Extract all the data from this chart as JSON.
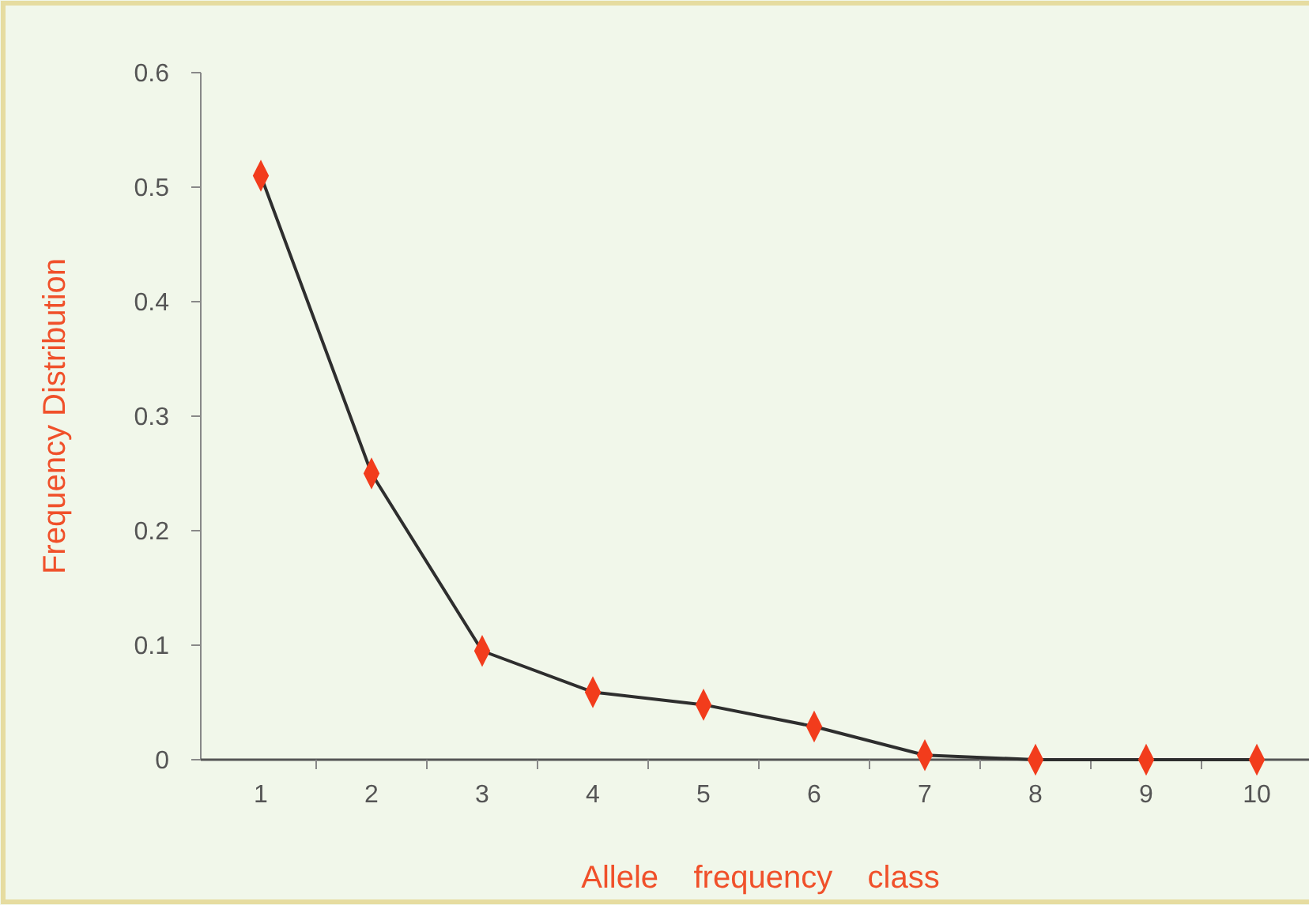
{
  "chart_data": {
    "type": "line",
    "xlabel": "Allele    frequency    class",
    "ylabel": "Frequency Distribution",
    "categories": [
      "1",
      "2",
      "3",
      "4",
      "5",
      "6",
      "7",
      "8",
      "9",
      "10"
    ],
    "series": [
      {
        "color": "#2e2e2e",
        "colors": [
          "#f23c1c",
          "#f23c1c",
          "#f23c1c",
          "#f23c1c",
          "#f23c1c",
          "#f23c1c",
          "#f23c1c",
          "#f23c1c",
          "#f23c1c",
          "#f23c1c"
        ],
        "values": [
          0.51,
          0.25,
          0.095,
          0.059,
          0.048,
          0.029,
          0.004,
          0,
          0,
          0
        ]
      }
    ],
    "ylim": [
      0,
      0.6
    ],
    "yticks": [
      0,
      0.1,
      0.2,
      0.3,
      0.4,
      0.5,
      0.6
    ],
    "marker": "diamond",
    "line_style": "solid",
    "grid": false
  }
}
